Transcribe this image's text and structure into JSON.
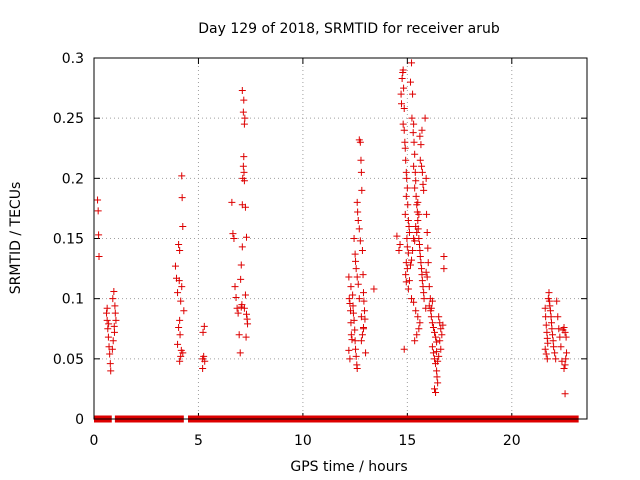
{
  "chart_data": {
    "type": "scatter",
    "title": "Day 129 of 2018, SRMTID for receiver arub",
    "xlabel": "GPS time / hours",
    "ylabel": "SRMTID / TECUs",
    "xlim": [
      0,
      23.6
    ],
    "ylim": [
      0,
      0.3
    ],
    "xticks": [
      0,
      5,
      10,
      15,
      20
    ],
    "xtick_labels": [
      "0",
      "5",
      "10",
      "15",
      "20"
    ],
    "yticks": [
      0,
      0.05,
      0.1,
      0.15,
      0.2,
      0.25,
      0.3
    ],
    "ytick_labels": [
      "0",
      "0.05",
      "0.1",
      "0.15",
      "0.2",
      "0.25",
      "0.3"
    ],
    "grid": true,
    "legend": "none",
    "marker": "plus",
    "color": "#dd0000",
    "zero_segments": [
      [
        0.0,
        0.85
      ],
      [
        1.0,
        4.3
      ],
      [
        4.5,
        23.2
      ]
    ],
    "series": [
      {
        "name": "SRMTID",
        "points": [
          [
            0.17,
            0.182
          ],
          [
            0.2,
            0.173
          ],
          [
            0.22,
            0.153
          ],
          [
            0.24,
            0.135
          ],
          [
            0.6,
            0.088
          ],
          [
            0.63,
            0.082
          ],
          [
            0.66,
            0.075
          ],
          [
            0.69,
            0.068
          ],
          [
            0.72,
            0.06
          ],
          [
            0.75,
            0.054
          ],
          [
            0.78,
            0.046
          ],
          [
            0.8,
            0.04
          ],
          [
            0.63,
            0.092
          ],
          [
            0.7,
            0.079
          ],
          [
            0.9,
            0.1
          ],
          [
            0.95,
            0.106
          ],
          [
            1.0,
            0.094
          ],
          [
            1.02,
            0.088
          ],
          [
            0.97,
            0.077
          ],
          [
            0.92,
            0.065
          ],
          [
            0.98,
            0.072
          ],
          [
            0.88,
            0.058
          ],
          [
            1.05,
            0.082
          ],
          [
            3.9,
            0.127
          ],
          [
            3.95,
            0.117
          ],
          [
            4.0,
            0.105
          ],
          [
            4.05,
            0.145
          ],
          [
            4.1,
            0.14
          ],
          [
            4.15,
            0.098
          ],
          [
            4.2,
            0.202
          ],
          [
            4.22,
            0.184
          ],
          [
            4.25,
            0.16
          ],
          [
            4.1,
            0.082
          ],
          [
            4.05,
            0.076
          ],
          [
            4.12,
            0.07
          ],
          [
            4.18,
            0.057
          ],
          [
            4.1,
            0.048
          ],
          [
            4.2,
            0.11
          ],
          [
            4.3,
            0.09
          ],
          [
            4.25,
            0.055
          ],
          [
            4.0,
            0.062
          ],
          [
            4.15,
            0.052
          ],
          [
            4.08,
            0.115
          ],
          [
            5.2,
            0.05
          ],
          [
            5.25,
            0.052
          ],
          [
            5.3,
            0.048
          ],
          [
            5.28,
            0.077
          ],
          [
            5.22,
            0.072
          ],
          [
            5.2,
            0.042
          ],
          [
            6.6,
            0.18
          ],
          [
            6.65,
            0.154
          ],
          [
            6.7,
            0.15
          ],
          [
            6.75,
            0.11
          ],
          [
            6.8,
            0.101
          ],
          [
            6.85,
            0.092
          ],
          [
            6.9,
            0.088
          ],
          [
            6.95,
            0.07
          ],
          [
            7.0,
            0.055
          ],
          [
            7.02,
            0.116
          ],
          [
            7.05,
            0.128
          ],
          [
            7.1,
            0.143
          ],
          [
            7.1,
            0.178
          ],
          [
            7.12,
            0.2
          ],
          [
            7.15,
            0.21
          ],
          [
            7.17,
            0.218
          ],
          [
            7.2,
            0.198
          ],
          [
            7.18,
            0.205
          ],
          [
            7.22,
            0.25
          ],
          [
            7.2,
            0.245
          ],
          [
            7.15,
            0.255
          ],
          [
            7.1,
            0.273
          ],
          [
            7.17,
            0.265
          ],
          [
            7.25,
            0.176
          ],
          [
            7.3,
            0.151
          ],
          [
            7.3,
            0.087
          ],
          [
            7.33,
            0.083
          ],
          [
            7.35,
            0.079
          ],
          [
            7.28,
            0.068
          ],
          [
            7.25,
            0.103
          ],
          [
            7.08,
            0.095
          ],
          [
            7.2,
            0.092
          ],
          [
            7.05,
            0.093
          ],
          [
            12.2,
            0.118
          ],
          [
            12.22,
            0.1
          ],
          [
            12.25,
            0.096
          ],
          [
            12.28,
            0.09
          ],
          [
            12.3,
            0.08
          ],
          [
            12.32,
            0.07
          ],
          [
            12.35,
            0.066
          ],
          [
            12.2,
            0.057
          ],
          [
            12.25,
            0.05
          ],
          [
            12.3,
            0.11
          ],
          [
            12.38,
            0.103
          ],
          [
            12.4,
            0.094
          ],
          [
            12.42,
            0.088
          ],
          [
            12.45,
            0.082
          ],
          [
            12.48,
            0.074
          ],
          [
            12.5,
            0.065
          ],
          [
            12.52,
            0.058
          ],
          [
            12.55,
            0.052
          ],
          [
            12.58,
            0.045
          ],
          [
            12.6,
            0.042
          ],
          [
            12.45,
            0.15
          ],
          [
            12.5,
            0.137
          ],
          [
            12.52,
            0.131
          ],
          [
            12.55,
            0.125
          ],
          [
            12.6,
            0.118
          ],
          [
            12.65,
            0.112
          ],
          [
            12.6,
            0.18
          ],
          [
            12.62,
            0.172
          ],
          [
            12.65,
            0.165
          ],
          [
            12.7,
            0.158
          ],
          [
            12.75,
            0.148
          ],
          [
            12.7,
            0.232
          ],
          [
            12.75,
            0.23
          ],
          [
            12.78,
            0.215
          ],
          [
            12.8,
            0.205
          ],
          [
            12.82,
            0.19
          ],
          [
            12.85,
            0.14
          ],
          [
            12.88,
            0.12
          ],
          [
            12.9,
            0.105
          ],
          [
            12.92,
            0.098
          ],
          [
            12.95,
            0.09
          ],
          [
            12.97,
            0.083
          ],
          [
            12.9,
            0.076
          ],
          [
            12.85,
            0.07
          ],
          [
            12.8,
            0.065
          ],
          [
            13.0,
            0.055
          ],
          [
            12.7,
            0.1
          ],
          [
            12.8,
            0.085
          ],
          [
            12.9,
            0.075
          ],
          [
            13.4,
            0.108
          ],
          [
            14.5,
            0.152
          ],
          [
            14.6,
            0.14
          ],
          [
            14.65,
            0.145
          ],
          [
            14.7,
            0.27
          ],
          [
            14.72,
            0.262
          ],
          [
            14.75,
            0.283
          ],
          [
            14.78,
            0.288
          ],
          [
            14.8,
            0.29
          ],
          [
            14.82,
            0.275
          ],
          [
            14.85,
            0.258
          ],
          [
            14.8,
            0.245
          ],
          [
            14.85,
            0.24
          ],
          [
            14.88,
            0.23
          ],
          [
            14.9,
            0.225
          ],
          [
            14.92,
            0.215
          ],
          [
            14.95,
            0.205
          ],
          [
            14.97,
            0.2
          ],
          [
            15.0,
            0.192
          ],
          [
            14.95,
            0.185
          ],
          [
            15.02,
            0.178
          ],
          [
            14.9,
            0.17
          ],
          [
            15.05,
            0.165
          ],
          [
            15.08,
            0.16
          ],
          [
            15.1,
            0.155
          ],
          [
            14.98,
            0.15
          ],
          [
            15.0,
            0.143
          ],
          [
            15.05,
            0.138
          ],
          [
            14.92,
            0.12
          ],
          [
            14.95,
            0.114
          ],
          [
            14.85,
            0.058
          ],
          [
            14.95,
            0.13
          ],
          [
            15.0,
            0.125
          ],
          [
            15.2,
            0.296
          ],
          [
            15.15,
            0.28
          ],
          [
            15.25,
            0.27
          ],
          [
            15.22,
            0.25
          ],
          [
            15.3,
            0.245
          ],
          [
            15.28,
            0.238
          ],
          [
            15.32,
            0.23
          ],
          [
            15.35,
            0.22
          ],
          [
            15.3,
            0.21
          ],
          [
            15.38,
            0.205
          ],
          [
            15.4,
            0.198
          ],
          [
            15.35,
            0.192
          ],
          [
            15.42,
            0.185
          ],
          [
            15.45,
            0.178
          ],
          [
            15.48,
            0.172
          ],
          [
            15.5,
            0.165
          ],
          [
            15.52,
            0.158
          ],
          [
            15.55,
            0.15
          ],
          [
            15.58,
            0.145
          ],
          [
            15.6,
            0.14
          ],
          [
            15.62,
            0.135
          ],
          [
            15.65,
            0.13
          ],
          [
            15.68,
            0.125
          ],
          [
            15.7,
            0.12
          ],
          [
            15.72,
            0.115
          ],
          [
            15.75,
            0.11
          ],
          [
            15.78,
            0.105
          ],
          [
            15.8,
            0.1
          ],
          [
            15.6,
            0.235
          ],
          [
            15.65,
            0.228
          ],
          [
            15.7,
            0.24
          ],
          [
            15.62,
            0.215
          ],
          [
            15.68,
            0.21
          ],
          [
            15.72,
            0.205
          ],
          [
            15.75,
            0.195
          ],
          [
            15.78,
            0.19
          ],
          [
            15.5,
            0.18
          ],
          [
            15.55,
            0.17
          ],
          [
            15.4,
            0.16
          ],
          [
            15.45,
            0.155
          ],
          [
            15.3,
            0.15
          ],
          [
            15.35,
            0.148
          ],
          [
            15.25,
            0.14
          ],
          [
            15.2,
            0.132
          ],
          [
            15.15,
            0.128
          ],
          [
            15.1,
            0.115
          ],
          [
            15.05,
            0.108
          ],
          [
            15.2,
            0.1
          ],
          [
            15.3,
            0.097
          ],
          [
            15.4,
            0.09
          ],
          [
            15.5,
            0.085
          ],
          [
            15.6,
            0.08
          ],
          [
            15.55,
            0.075
          ],
          [
            15.45,
            0.07
          ],
          [
            15.35,
            0.065
          ],
          [
            15.85,
            0.25
          ],
          [
            15.9,
            0.2
          ],
          [
            15.92,
            0.17
          ],
          [
            15.95,
            0.155
          ],
          [
            15.98,
            0.142
          ],
          [
            16.0,
            0.13
          ],
          [
            15.9,
            0.122
          ],
          [
            15.95,
            0.118
          ],
          [
            16.05,
            0.11
          ],
          [
            16.1,
            0.1
          ],
          [
            15.88,
            0.092
          ],
          [
            16.12,
            0.09
          ],
          [
            16.15,
            0.085
          ],
          [
            16.2,
            0.08
          ],
          [
            16.25,
            0.076
          ],
          [
            16.3,
            0.072
          ],
          [
            16.35,
            0.068
          ],
          [
            16.4,
            0.064
          ],
          [
            16.2,
            0.06
          ],
          [
            16.25,
            0.055
          ],
          [
            16.3,
            0.05
          ],
          [
            16.35,
            0.046
          ],
          [
            16.4,
            0.04
          ],
          [
            16.42,
            0.035
          ],
          [
            16.45,
            0.03
          ],
          [
            16.3,
            0.025
          ],
          [
            16.35,
            0.022
          ],
          [
            16.5,
            0.085
          ],
          [
            16.55,
            0.08
          ],
          [
            16.6,
            0.075
          ],
          [
            16.65,
            0.07
          ],
          [
            16.55,
            0.065
          ],
          [
            16.6,
            0.058
          ],
          [
            16.5,
            0.052
          ],
          [
            16.45,
            0.048
          ],
          [
            16.4,
            0.056
          ],
          [
            16.7,
            0.078
          ],
          [
            16.75,
            0.125
          ],
          [
            16.75,
            0.135
          ],
          [
            16.2,
            0.098
          ],
          [
            16.15,
            0.092
          ],
          [
            16.05,
            0.094
          ],
          [
            21.6,
            0.092
          ],
          [
            21.62,
            0.085
          ],
          [
            21.65,
            0.078
          ],
          [
            21.68,
            0.072
          ],
          [
            21.7,
            0.067
          ],
          [
            21.72,
            0.063
          ],
          [
            21.6,
            0.058
          ],
          [
            21.65,
            0.054
          ],
          [
            21.7,
            0.05
          ],
          [
            21.75,
            0.1
          ],
          [
            21.78,
            0.105
          ],
          [
            21.8,
            0.098
          ],
          [
            21.82,
            0.094
          ],
          [
            21.85,
            0.09
          ],
          [
            21.88,
            0.085
          ],
          [
            21.9,
            0.08
          ],
          [
            21.92,
            0.075
          ],
          [
            21.95,
            0.07
          ],
          [
            21.98,
            0.065
          ],
          [
            22.0,
            0.06
          ],
          [
            22.05,
            0.055
          ],
          [
            22.1,
            0.05
          ],
          [
            22.15,
            0.098
          ],
          [
            22.2,
            0.085
          ],
          [
            22.25,
            0.075
          ],
          [
            22.3,
            0.068
          ],
          [
            22.35,
            0.06
          ],
          [
            22.4,
            0.048
          ],
          [
            22.5,
            0.076
          ],
          [
            22.55,
            0.072
          ],
          [
            22.6,
            0.068
          ],
          [
            22.62,
            0.055
          ],
          [
            22.58,
            0.05
          ],
          [
            22.55,
            0.045
          ],
          [
            22.5,
            0.042
          ],
          [
            22.55,
            0.021
          ],
          [
            22.45,
            0.074
          ]
        ]
      }
    ]
  }
}
